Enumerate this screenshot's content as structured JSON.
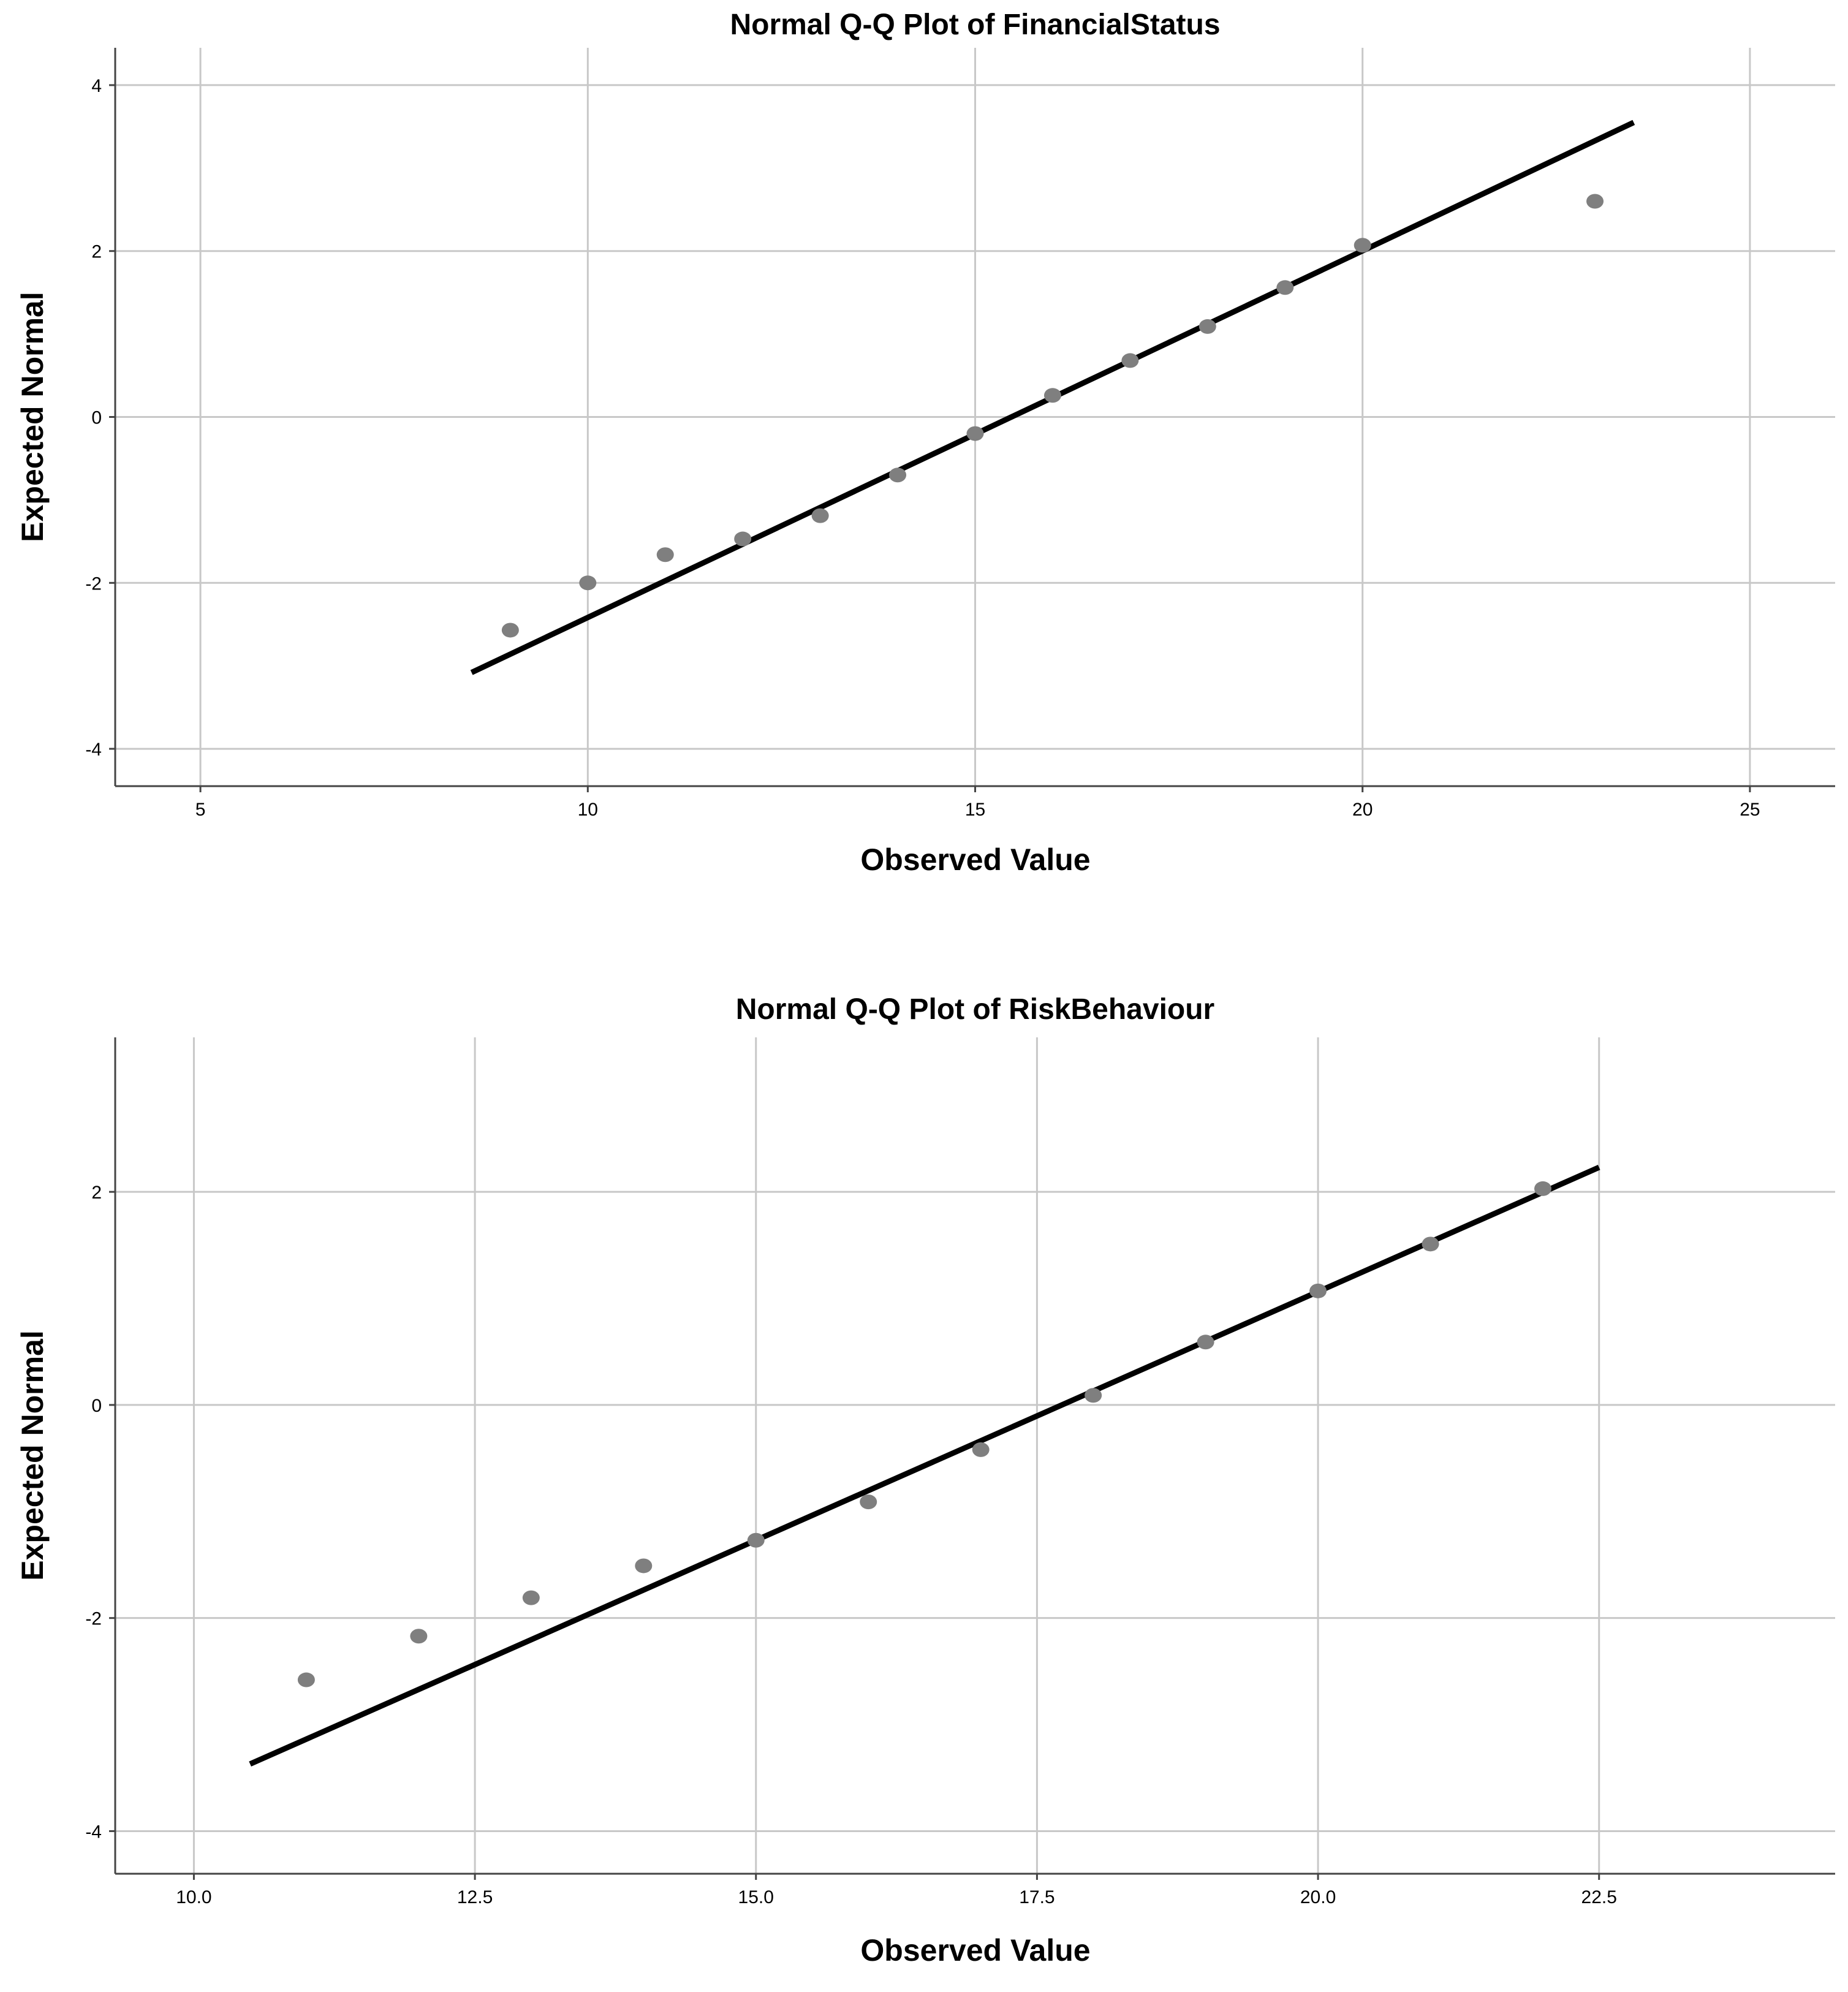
{
  "chart_data": [
    {
      "type": "scatter",
      "title": "Normal Q-Q Plot of FinancialStatus",
      "xlabel": "Observed Value",
      "ylabel": "Expected Normal",
      "xlim": [
        3.9,
        26.1
      ],
      "ylim": [
        -4.45,
        4.45
      ],
      "x_ticks": [
        5,
        10,
        15,
        20,
        25
      ],
      "x_tick_labels": [
        "5",
        "10",
        "15",
        "20",
        "25"
      ],
      "y_ticks": [
        -4,
        -2,
        0,
        2,
        4
      ],
      "y_tick_labels": [
        "-4",
        "-2",
        "0",
        "2",
        "4"
      ],
      "grid": true,
      "points": [
        {
          "x": 9,
          "y": -2.57
        },
        {
          "x": 10,
          "y": -2.0
        },
        {
          "x": 11,
          "y": -1.66
        },
        {
          "x": 12,
          "y": -1.47
        },
        {
          "x": 13,
          "y": -1.19
        },
        {
          "x": 14,
          "y": -0.7
        },
        {
          "x": 15,
          "y": -0.2
        },
        {
          "x": 16,
          "y": 0.26
        },
        {
          "x": 17,
          "y": 0.68
        },
        {
          "x": 18,
          "y": 1.09
        },
        {
          "x": 19,
          "y": 1.56
        },
        {
          "x": 20,
          "y": 2.07
        },
        {
          "x": 23,
          "y": 2.6
        }
      ],
      "reference_line": {
        "x": [
          8.5,
          23.5
        ],
        "y": [
          -3.08,
          3.55
        ]
      },
      "marker_color": "#7f7f7f",
      "line_color": "#000000"
    },
    {
      "type": "scatter",
      "title": "Normal Q-Q Plot of RiskBehaviour",
      "xlabel": "Observed Value",
      "ylabel": "Expected Normal",
      "xlim": [
        9.3,
        24.6
      ],
      "ylim": [
        -4.4,
        3.45
      ],
      "x_ticks": [
        10,
        12.5,
        15,
        17.5,
        20,
        22.5
      ],
      "x_tick_labels": [
        "10.0",
        "12.5",
        "15.0",
        "17.5",
        "20.0",
        "22.5"
      ],
      "y_ticks": [
        -4,
        -2,
        0,
        2
      ],
      "y_tick_labels": [
        "-4",
        "-2",
        "0",
        "2"
      ],
      "grid": true,
      "points": [
        {
          "x": 11,
          "y": -2.58
        },
        {
          "x": 12,
          "y": -2.17
        },
        {
          "x": 13,
          "y": -1.81
        },
        {
          "x": 14,
          "y": -1.51
        },
        {
          "x": 15,
          "y": -1.27
        },
        {
          "x": 16,
          "y": -0.91
        },
        {
          "x": 17,
          "y": -0.42
        },
        {
          "x": 18,
          "y": 0.09
        },
        {
          "x": 19,
          "y": 0.59
        },
        {
          "x": 20,
          "y": 1.07
        },
        {
          "x": 21,
          "y": 1.51
        },
        {
          "x": 22,
          "y": 2.03
        }
      ],
      "reference_line": {
        "x": [
          10.5,
          22.5
        ],
        "y": [
          -3.37,
          2.23
        ]
      },
      "marker_color": "#7f7f7f",
      "line_color": "#000000"
    }
  ]
}
